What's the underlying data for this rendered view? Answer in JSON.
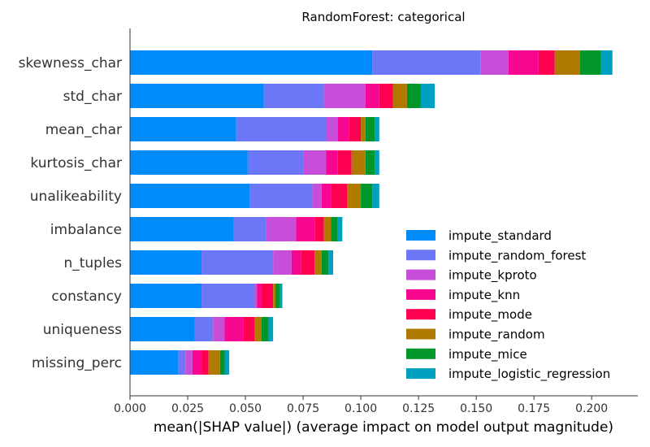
{
  "chart_data": {
    "type": "bar",
    "orientation": "horizontal",
    "stacked": true,
    "title": "RandomForest: categorical",
    "xlabel": "mean(|SHAP value|) (average impact on model output magnitude)",
    "ylabel": "",
    "xlim": [
      0,
      0.22
    ],
    "xticks": [
      "0.000",
      "0.025",
      "0.050",
      "0.075",
      "0.100",
      "0.125",
      "0.150",
      "0.175",
      "0.200"
    ],
    "grid": false,
    "legend_position": "lower-right",
    "categories": [
      "skewness_char",
      "std_char",
      "mean_char",
      "kurtosis_char",
      "unalikeability",
      "imbalance",
      "n_tuples",
      "constancy",
      "uniqueness",
      "missing_perc"
    ],
    "series": [
      {
        "name": "impute_standard",
        "color": "#008bfb",
        "values": [
          0.105,
          0.058,
          0.046,
          0.051,
          0.052,
          0.045,
          0.031,
          0.031,
          0.028,
          0.021
        ]
      },
      {
        "name": "impute_random_forest",
        "color": "#6b77f6",
        "values": [
          0.047,
          0.026,
          0.039,
          0.024,
          0.027,
          0.014,
          0.031,
          0.023,
          0.008,
          0.003
        ]
      },
      {
        "name": "impute_kproto",
        "color": "#c74ed9",
        "values": [
          0.012,
          0.018,
          0.005,
          0.01,
          0.004,
          0.013,
          0.008,
          0.001,
          0.005,
          0.003
        ]
      },
      {
        "name": "impute_knn",
        "color": "#f7078f",
        "values": [
          0.013,
          0.006,
          0.005,
          0.005,
          0.004,
          0.008,
          0.004,
          0.002,
          0.008,
          0.004
        ]
      },
      {
        "name": "impute_mode",
        "color": "#ff0051",
        "values": [
          0.007,
          0.006,
          0.005,
          0.006,
          0.007,
          0.004,
          0.006,
          0.005,
          0.005,
          0.003
        ]
      },
      {
        "name": "impute_random",
        "color": "#b07a00",
        "values": [
          0.011,
          0.006,
          0.002,
          0.006,
          0.006,
          0.003,
          0.003,
          0.001,
          0.003,
          0.005
        ]
      },
      {
        "name": "impute_mice",
        "color": "#00962a",
        "values": [
          0.009,
          0.006,
          0.004,
          0.004,
          0.005,
          0.003,
          0.003,
          0.002,
          0.003,
          0.002
        ]
      },
      {
        "name": "impute_logistic_regression",
        "color": "#00a0c0",
        "values": [
          0.005,
          0.006,
          0.002,
          0.002,
          0.003,
          0.002,
          0.002,
          0.001,
          0.002,
          0.002
        ]
      }
    ]
  }
}
